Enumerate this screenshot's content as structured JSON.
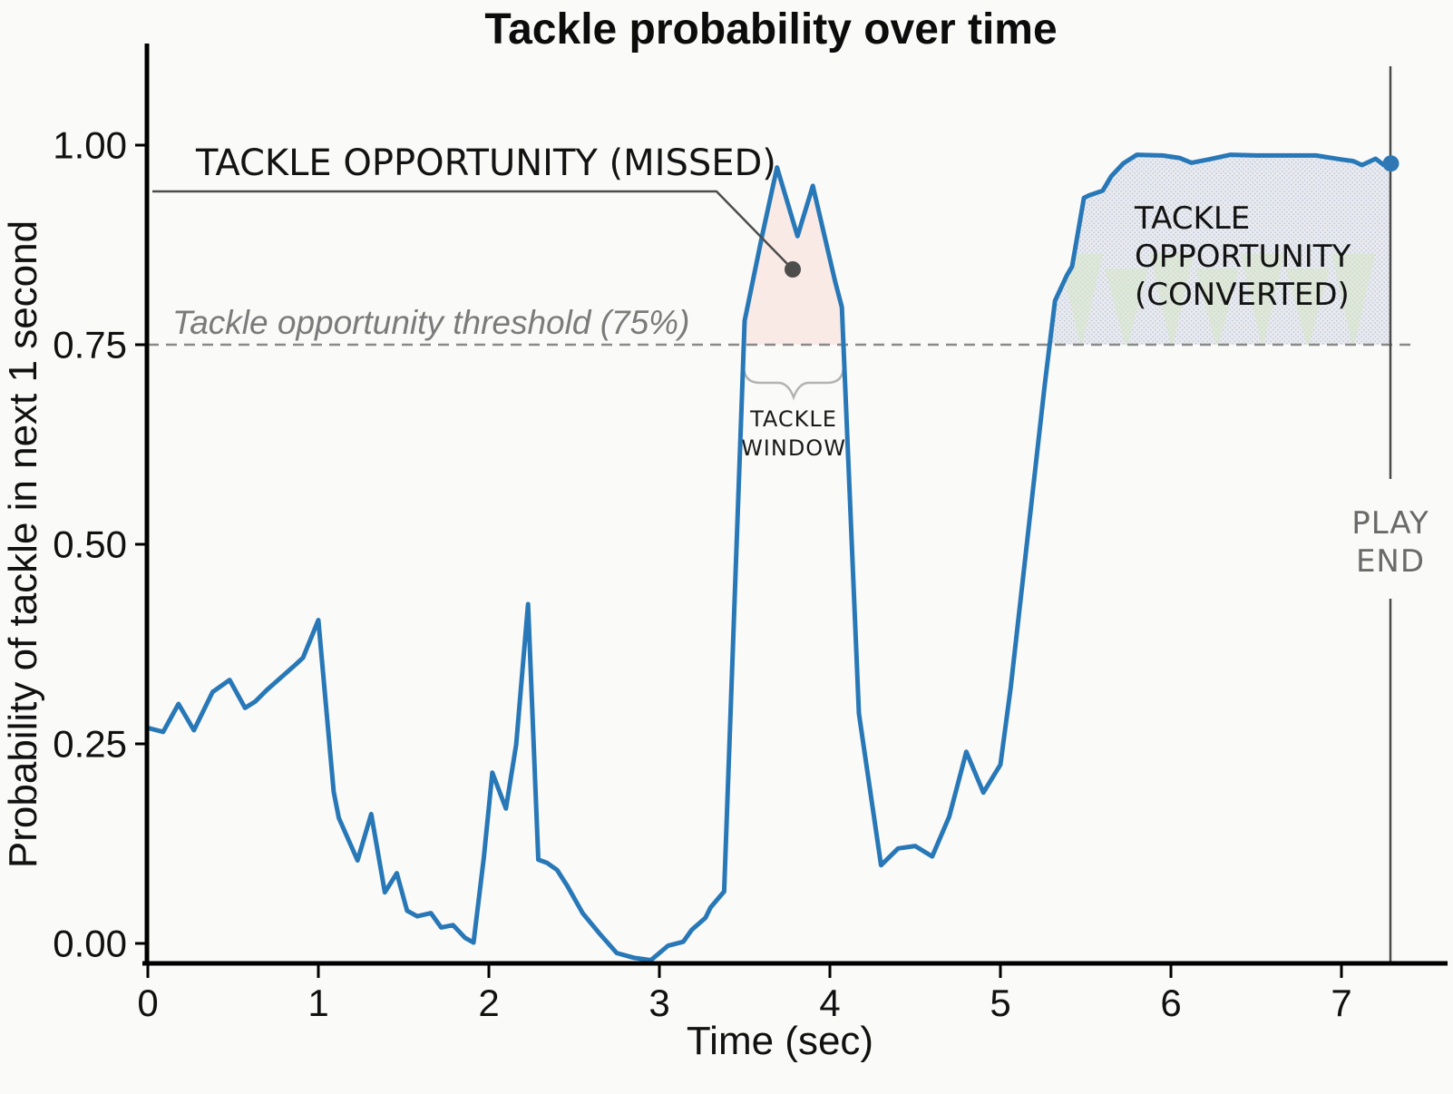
{
  "title": "Tackle probability over time",
  "axes": {
    "x_label": "Time (sec)",
    "y_label": "Probability of tackle in next 1 second",
    "x_ticks": [
      "0",
      "1",
      "2",
      "3",
      "4",
      "5",
      "6",
      "7"
    ],
    "y_ticks": [
      "0.00",
      "0.25",
      "0.50",
      "0.75",
      "1.00"
    ]
  },
  "annotations": {
    "missed_label": "TACKLE OPPORTUNITY (MISSED)",
    "threshold_label": "Tackle opportunity threshold (75%)",
    "window_line1": "TACKLE",
    "window_line2": "WINDOW",
    "converted_line1": "TACKLE",
    "converted_line2": "OPPORTUNITY",
    "converted_line3": "(CONVERTED)",
    "play_end_line1": "PLAY",
    "play_end_line2": "END"
  },
  "colors": {
    "line": "#2878b8",
    "end_marker": "#2f78b4",
    "missed_fill": "#f9eae6",
    "converted_fill": "#e9ebf0",
    "converted_dot": "#c3cad9",
    "watermark_green": "#d8e7c8",
    "threshold": "#8a8a8a",
    "leader": "#4d4d4d",
    "play_end": "#4a4a4a",
    "axis": "#000000"
  },
  "chart_data": {
    "type": "line",
    "title": "Tackle probability over time",
    "xlabel": "Time (sec)",
    "ylabel": "Probability of tackle in next 1 second",
    "xlim": [
      0,
      7.6
    ],
    "ylim": [
      -0.05,
      1.1
    ],
    "grid": false,
    "legend": "none",
    "threshold": 0.75,
    "play_end_time": 7.29,
    "regions": [
      {
        "name": "tackle-opportunity-missed",
        "from": 3.5,
        "to": 4.08,
        "converted": false
      },
      {
        "name": "tackle-opportunity-converted",
        "from": 5.29,
        "to": 7.29,
        "converted": true
      }
    ],
    "series": [
      {
        "name": "tackle_probability",
        "points": [
          [
            0.0,
            0.27
          ],
          [
            0.09,
            0.265
          ],
          [
            0.18,
            0.3
          ],
          [
            0.27,
            0.267
          ],
          [
            0.38,
            0.315
          ],
          [
            0.48,
            0.33
          ],
          [
            0.57,
            0.295
          ],
          [
            0.63,
            0.303
          ],
          [
            0.7,
            0.318
          ],
          [
            0.78,
            0.333
          ],
          [
            0.87,
            0.35
          ],
          [
            0.91,
            0.358
          ],
          [
            1.0,
            0.405
          ],
          [
            1.09,
            0.19
          ],
          [
            1.12,
            0.157
          ],
          [
            1.23,
            0.104
          ],
          [
            1.31,
            0.162
          ],
          [
            1.39,
            0.064
          ],
          [
            1.46,
            0.088
          ],
          [
            1.52,
            0.041
          ],
          [
            1.58,
            0.034
          ],
          [
            1.66,
            0.038
          ],
          [
            1.72,
            0.02
          ],
          [
            1.79,
            0.023
          ],
          [
            1.86,
            0.007
          ],
          [
            1.91,
            0.001
          ],
          [
            1.97,
            0.107
          ],
          [
            2.02,
            0.214
          ],
          [
            2.1,
            0.169
          ],
          [
            2.16,
            0.249
          ],
          [
            2.23,
            0.425
          ],
          [
            2.29,
            0.105
          ],
          [
            2.34,
            0.101
          ],
          [
            2.4,
            0.092
          ],
          [
            2.46,
            0.072
          ],
          [
            2.55,
            0.038
          ],
          [
            2.65,
            0.012
          ],
          [
            2.75,
            -0.012
          ],
          [
            2.85,
            -0.018
          ],
          [
            2.95,
            -0.021
          ],
          [
            3.05,
            -0.003
          ],
          [
            3.14,
            0.002
          ],
          [
            3.19,
            0.017
          ],
          [
            3.27,
            0.032
          ],
          [
            3.3,
            0.045
          ],
          [
            3.38,
            0.065
          ],
          [
            3.5,
            0.78
          ],
          [
            3.6,
            0.884
          ],
          [
            3.69,
            0.972
          ],
          [
            3.81,
            0.886
          ],
          [
            3.9,
            0.949
          ],
          [
            4.03,
            0.83
          ],
          [
            4.07,
            0.797
          ],
          [
            4.17,
            0.288
          ],
          [
            4.3,
            0.098
          ],
          [
            4.4,
            0.119
          ],
          [
            4.5,
            0.122
          ],
          [
            4.6,
            0.109
          ],
          [
            4.7,
            0.159
          ],
          [
            4.8,
            0.24
          ],
          [
            4.9,
            0.189
          ],
          [
            5.0,
            0.224
          ],
          [
            5.06,
            0.32
          ],
          [
            5.26,
            0.7
          ],
          [
            5.32,
            0.805
          ],
          [
            5.39,
            0.837
          ],
          [
            5.42,
            0.848
          ],
          [
            5.49,
            0.934
          ],
          [
            5.52,
            0.937
          ],
          [
            5.6,
            0.943
          ],
          [
            5.65,
            0.961
          ],
          [
            5.72,
            0.977
          ],
          [
            5.8,
            0.988
          ],
          [
            5.95,
            0.987
          ],
          [
            6.05,
            0.984
          ],
          [
            6.12,
            0.978
          ],
          [
            6.22,
            0.982
          ],
          [
            6.35,
            0.988
          ],
          [
            6.5,
            0.987
          ],
          [
            6.7,
            0.987
          ],
          [
            6.85,
            0.987
          ],
          [
            7.0,
            0.982
          ],
          [
            7.07,
            0.98
          ],
          [
            7.12,
            0.975
          ],
          [
            7.2,
            0.983
          ],
          [
            7.25,
            0.975
          ],
          [
            7.29,
            0.977
          ]
        ]
      }
    ]
  }
}
